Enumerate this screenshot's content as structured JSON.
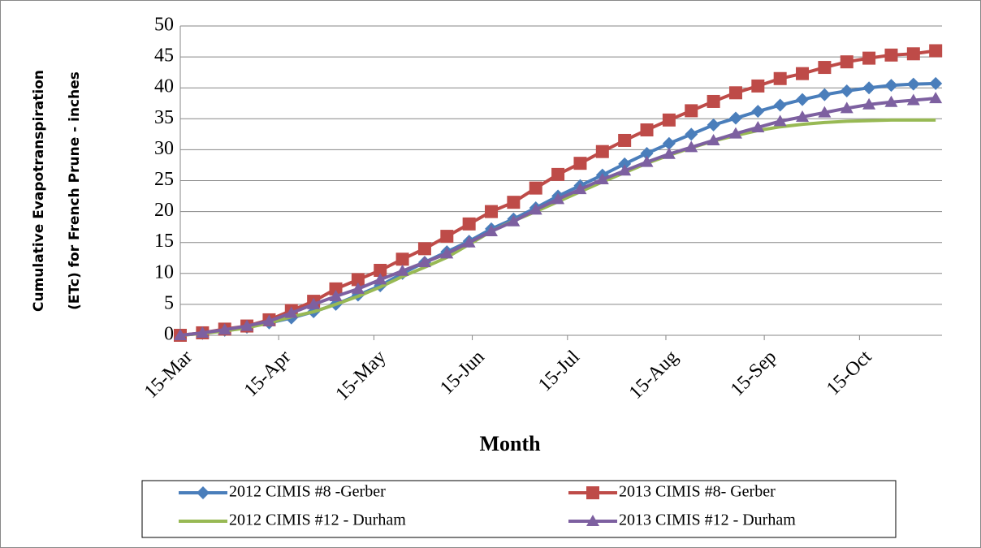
{
  "chart_data": {
    "type": "line",
    "ylabel": [
      "Cumulative Evapotranspiration",
      "(ETc) for French Prune - inches"
    ],
    "xlabel": "Month",
    "x": [
      0,
      7,
      14,
      21,
      28,
      35,
      42,
      49,
      56,
      63,
      70,
      77,
      84,
      91,
      98,
      105,
      112,
      119,
      126,
      133,
      140,
      147,
      154,
      161,
      168,
      175,
      182,
      189,
      196,
      203,
      210,
      217,
      224,
      231,
      238
    ],
    "xlim": [
      0,
      240
    ],
    "xticks": [
      {
        "value": 0,
        "label": "15-Mar"
      },
      {
        "value": 31,
        "label": "15-Apr"
      },
      {
        "value": 61,
        "label": "15-May"
      },
      {
        "value": 92,
        "label": "15-Jun"
      },
      {
        "value": 122,
        "label": "15-Jul"
      },
      {
        "value": 153,
        "label": "15-Aug"
      },
      {
        "value": 184,
        "label": "15-Sep"
      },
      {
        "value": 214,
        "label": "15-Oct"
      }
    ],
    "ylim": [
      0,
      50
    ],
    "yticks": [
      0,
      5,
      10,
      15,
      20,
      25,
      30,
      35,
      40,
      45,
      50
    ],
    "grid": true,
    "series": [
      {
        "name": "2012 CIMIS #8 -Gerber",
        "color": "#4a7ebb",
        "marker": "diamond",
        "values": [
          0,
          0.3,
          0.8,
          1.3,
          2,
          2.8,
          3.8,
          5,
          6.5,
          8,
          10,
          11.8,
          13.5,
          15.2,
          17.2,
          18.8,
          20.6,
          22.5,
          24.2,
          25.9,
          27.7,
          29.4,
          31,
          32.5,
          34,
          35.1,
          36.2,
          37.2,
          38.1,
          38.9,
          39.5,
          40,
          40.4,
          40.6,
          40.7
        ]
      },
      {
        "name": "2013 CIMIS #8- Gerber",
        "color": "#be4b48",
        "marker": "square",
        "values": [
          0,
          0.4,
          1,
          1.5,
          2.5,
          4,
          5.5,
          7.5,
          9,
          10.5,
          12.3,
          14,
          16,
          18,
          20,
          21.5,
          23.8,
          26,
          27.8,
          29.7,
          31.5,
          33.2,
          34.8,
          36.3,
          37.8,
          39.2,
          40.3,
          41.5,
          42.3,
          43.3,
          44.2,
          44.8,
          45.3,
          45.5,
          46
        ]
      },
      {
        "name": "2012 CIMIS #12 - Durham",
        "color": "#98b954",
        "marker": "none",
        "values": [
          0,
          0.3,
          0.7,
          1.2,
          2,
          3,
          3.8,
          5,
          6.3,
          7.8,
          9.5,
          11,
          12.6,
          14.7,
          16.8,
          18.5,
          20,
          21.6,
          23.2,
          24.8,
          26.3,
          27.8,
          29.1,
          30.3,
          31.4,
          32.3,
          33.1,
          33.7,
          34.1,
          34.4,
          34.6,
          34.7,
          34.8,
          34.8,
          34.8
        ]
      },
      {
        "name": "2013 CIMIS #12 - Durham",
        "color": "#7d60a0",
        "marker": "triangle",
        "values": [
          0,
          0.4,
          0.9,
          1.5,
          2.3,
          3.6,
          5,
          6.3,
          7.5,
          9,
          10.4,
          11.8,
          13.2,
          15,
          16.8,
          18.4,
          20.3,
          22,
          23.6,
          25.2,
          26.6,
          28,
          29.3,
          30.4,
          31.5,
          32.6,
          33.6,
          34.6,
          35.3,
          36,
          36.7,
          37.3,
          37.7,
          38,
          38.3
        ]
      }
    ]
  }
}
